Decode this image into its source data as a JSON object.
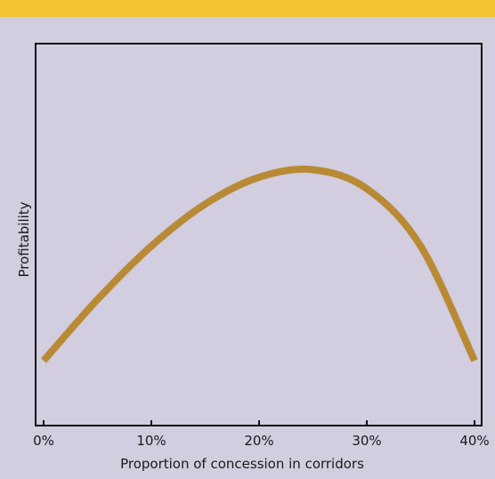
{
  "colors": {
    "header_bar": "#f5c332",
    "background": "#d2cddf",
    "curve": "#b98a35",
    "axis": "#111111"
  },
  "chart_data": {
    "type": "line",
    "title": "",
    "xlabel": "Proportion of concession in corridors",
    "ylabel": "Profitability",
    "xlim": [
      0,
      40
    ],
    "x_ticks": [
      0,
      10,
      20,
      30,
      40
    ],
    "x_tick_labels": [
      "0%",
      "10%",
      "20%",
      "30%",
      "40%"
    ],
    "y_ticks_labelled": false,
    "grid": false,
    "legend": "none",
    "series": [
      {
        "x": [
          0,
          5,
          10,
          15,
          20,
          25,
          30,
          35,
          40
        ],
        "y": [
          0.17,
          0.33,
          0.47,
          0.58,
          0.65,
          0.67,
          0.62,
          0.47,
          0.17
        ]
      }
    ]
  }
}
